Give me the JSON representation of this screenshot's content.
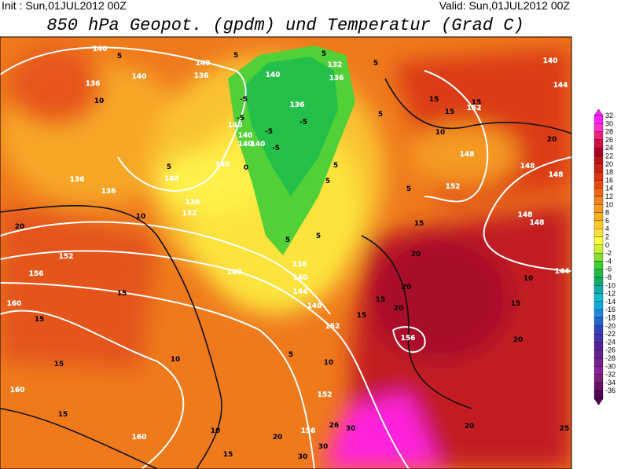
{
  "header": {
    "init": "Init : Sun,01JUL2012 00Z",
    "valid": "Valid: Sun,01JUL2012 00Z",
    "title": "850 hPa Geopot. (gpdm) und Temperatur (Grad C)"
  },
  "colorbar": {
    "levels": [
      32,
      30,
      28,
      26,
      24,
      22,
      20,
      18,
      16,
      14,
      12,
      10,
      8,
      6,
      4,
      2,
      0,
      -2,
      -4,
      -6,
      -8,
      -10,
      -12,
      -14,
      -16,
      -18,
      -20,
      -22,
      -24,
      -26,
      -28,
      -30,
      -32,
      -34,
      -36
    ],
    "colors": [
      "#ff22ff",
      "#ff33cc",
      "#ee2277",
      "#cc1144",
      "#aa0022",
      "#b81414",
      "#cc2211",
      "#dd3311",
      "#e84812",
      "#ee6611",
      "#f08020",
      "#f59a20",
      "#f8b020",
      "#fbc830",
      "#ffe040",
      "#ffff40",
      "#ccee33",
      "#88dd33",
      "#44cc33",
      "#22bb44",
      "#11aa66",
      "#11aaaa",
      "#11bbcc",
      "#11aadd",
      "#2288dd",
      "#2266cc",
      "#3344bb",
      "#4433aa",
      "#552299",
      "#662288",
      "#772288",
      "#882299",
      "#772277",
      "#661166",
      "#550055"
    ]
  },
  "map": {
    "labels": [
      140,
      140,
      140,
      136,
      136,
      140,
      132,
      136,
      136,
      140,
      140,
      140,
      140,
      140,
      140,
      136,
      136,
      136,
      132,
      152,
      156,
      160,
      140,
      136,
      140,
      144,
      148,
      152,
      156,
      152,
      160,
      160,
      156,
      152,
      148,
      148,
      148,
      148,
      148,
      144,
      140,
      144,
      152,
      10,
      10,
      20,
      15,
      15,
      10,
      15,
      15,
      10,
      15,
      20,
      30,
      30,
      26,
      30,
      20,
      25,
      20,
      15,
      15,
      10,
      20,
      20,
      15,
      15,
      10,
      5,
      5,
      5,
      5,
      5,
      5,
      10,
      15,
      15,
      15,
      20,
      5,
      0,
      -5,
      -5,
      -5,
      -5,
      -5,
      5,
      5,
      5,
      5,
      5,
      20
    ]
  }
}
